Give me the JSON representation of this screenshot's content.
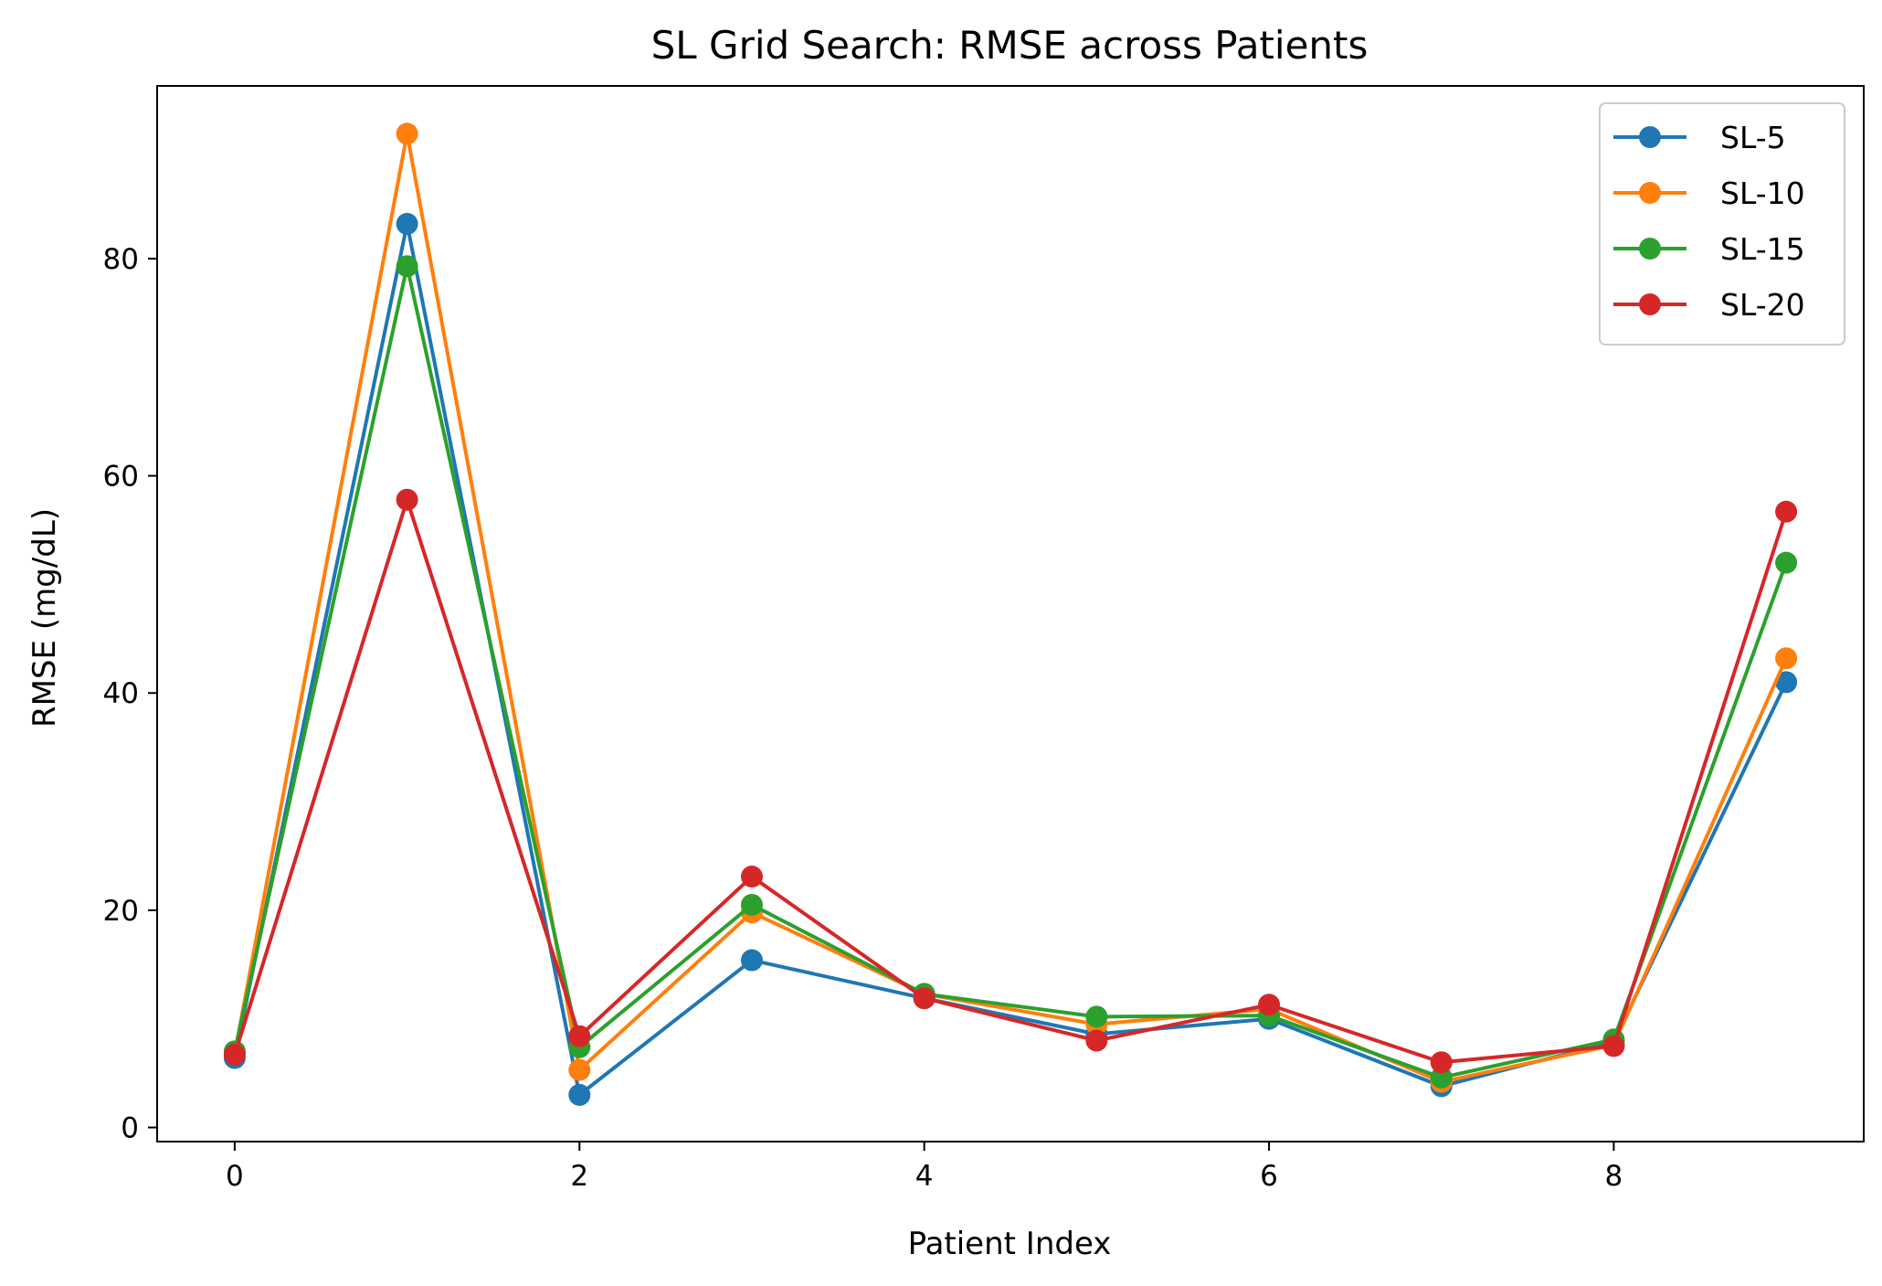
{
  "chart_data": {
    "type": "line",
    "title": "SL Grid Search: RMSE across Patients",
    "xlabel": "Patient Index",
    "ylabel": "RMSE (mg/dL)",
    "x": [
      0,
      1,
      2,
      3,
      4,
      5,
      6,
      7,
      8,
      9
    ],
    "xlim": [
      -0.45,
      9.45
    ],
    "ylim": [
      -1.3,
      95.9
    ],
    "xticks": [
      0,
      2,
      4,
      6,
      8
    ],
    "yticks": [
      0,
      20,
      40,
      60,
      80
    ],
    "grid": false,
    "legend_position": "top-right",
    "series": [
      {
        "name": "SL-5",
        "color": "#1f77b4",
        "values": [
          6.4,
          83.2,
          3.0,
          15.4,
          11.9,
          8.6,
          10.0,
          3.8,
          7.9,
          41.0
        ]
      },
      {
        "name": "SL-10",
        "color": "#ff7f0e",
        "values": [
          6.8,
          91.5,
          5.3,
          19.8,
          12.3,
          9.5,
          10.9,
          4.2,
          7.6,
          43.2
        ]
      },
      {
        "name": "SL-15",
        "color": "#2ca02c",
        "values": [
          7.0,
          79.3,
          7.4,
          20.5,
          12.3,
          10.2,
          10.3,
          4.6,
          8.1,
          52.0
        ]
      },
      {
        "name": "SL-20",
        "color": "#d62728",
        "values": [
          6.7,
          57.8,
          8.4,
          23.1,
          11.9,
          8.0,
          11.3,
          6.0,
          7.5,
          56.7
        ]
      }
    ]
  }
}
